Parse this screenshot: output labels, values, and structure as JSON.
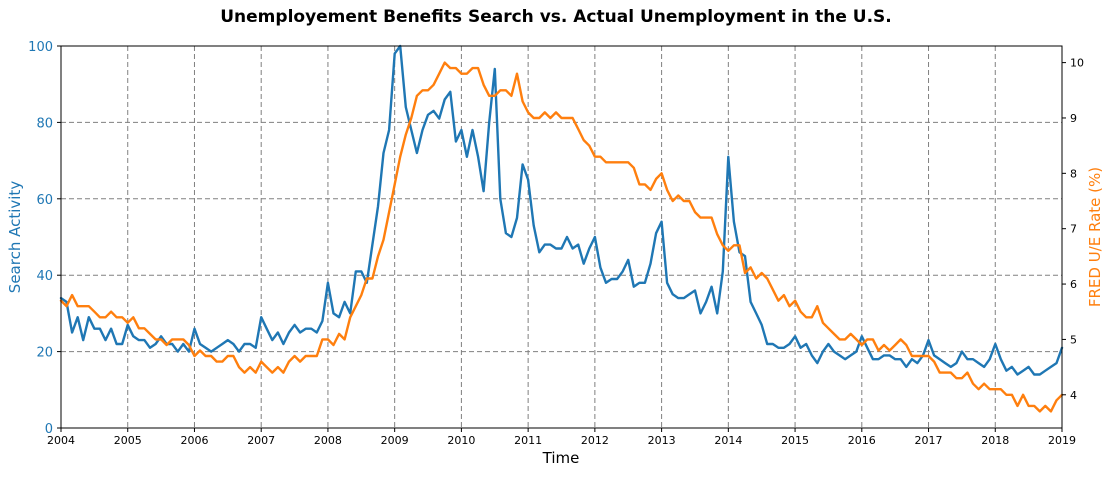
{
  "chart_data": {
    "type": "line",
    "title": "Unemployement Benefits Search vs. Actual Unemployment in the U.S.",
    "xlabel": "Time",
    "ylabel_left": "Search Activity",
    "ylabel_right": "FRED U/E Rate (%)",
    "xlim": [
      2004,
      2019
    ],
    "ylim_left": [
      0,
      100
    ],
    "ylim_right": [
      3.4,
      10.3
    ],
    "x_ticks": [
      "2004",
      "2005",
      "2006",
      "2007",
      "2008",
      "2009",
      "2010",
      "2011",
      "2012",
      "2013",
      "2014",
      "2015",
      "2016",
      "2017",
      "2018",
      "2019"
    ],
    "y_left_ticks": [
      0,
      20,
      40,
      60,
      80,
      100
    ],
    "y_right_ticks": [
      4,
      5,
      6,
      7,
      8,
      9,
      10
    ],
    "grid": true,
    "grid_style": "dashed",
    "colors": {
      "search": "#1f77b4",
      "rate": "#ff7f0e",
      "grid": "#808080",
      "axis": "#000000"
    },
    "series": [
      {
        "axis": "left",
        "color": "#1f77b4",
        "x": [
          2004.0,
          2004.083,
          2004.167,
          2004.25,
          2004.333,
          2004.417,
          2004.5,
          2004.583,
          2004.667,
          2004.75,
          2004.833,
          2004.917,
          2005.0,
          2005.083,
          2005.167,
          2005.25,
          2005.333,
          2005.417,
          2005.5,
          2005.583,
          2005.667,
          2005.75,
          2005.833,
          2005.917,
          2006.0,
          2006.083,
          2006.167,
          2006.25,
          2006.333,
          2006.417,
          2006.5,
          2006.583,
          2006.667,
          2006.75,
          2006.833,
          2006.917,
          2007.0,
          2007.083,
          2007.167,
          2007.25,
          2007.333,
          2007.417,
          2007.5,
          2007.583,
          2007.667,
          2007.75,
          2007.833,
          2007.917,
          2008.0,
          2008.083,
          2008.167,
          2008.25,
          2008.333,
          2008.417,
          2008.5,
          2008.583,
          2008.667,
          2008.75,
          2008.833,
          2008.917,
          2009.0,
          2009.083,
          2009.167,
          2009.25,
          2009.333,
          2009.417,
          2009.5,
          2009.583,
          2009.667,
          2009.75,
          2009.833,
          2009.917,
          2010.0,
          2010.083,
          2010.167,
          2010.25,
          2010.333,
          2010.417,
          2010.5,
          2010.583,
          2010.667,
          2010.75,
          2010.833,
          2010.917,
          2011.0,
          2011.083,
          2011.167,
          2011.25,
          2011.333,
          2011.417,
          2011.5,
          2011.583,
          2011.667,
          2011.75,
          2011.833,
          2011.917,
          2012.0,
          2012.083,
          2012.167,
          2012.25,
          2012.333,
          2012.417,
          2012.5,
          2012.583,
          2012.667,
          2012.75,
          2012.833,
          2012.917,
          2013.0,
          2013.083,
          2013.167,
          2013.25,
          2013.333,
          2013.417,
          2013.5,
          2013.583,
          2013.667,
          2013.75,
          2013.833,
          2013.917,
          2014.0,
          2014.083,
          2014.167,
          2014.25,
          2014.333,
          2014.417,
          2014.5,
          2014.583,
          2014.667,
          2014.75,
          2014.833,
          2014.917,
          2015.0,
          2015.083,
          2015.167,
          2015.25,
          2015.333,
          2015.417,
          2015.5,
          2015.583,
          2015.667,
          2015.75,
          2015.833,
          2015.917,
          2016.0,
          2016.083,
          2016.167,
          2016.25,
          2016.333,
          2016.417,
          2016.5,
          2016.583,
          2016.667,
          2016.75,
          2016.833,
          2016.917,
          2017.0,
          2017.083,
          2017.167,
          2017.25,
          2017.333,
          2017.417,
          2017.5,
          2017.583,
          2017.667,
          2017.75,
          2017.833,
          2017.917,
          2018.0,
          2018.083,
          2018.167,
          2018.25,
          2018.333,
          2018.417,
          2018.5,
          2018.583,
          2018.667,
          2018.75,
          2018.833,
          2018.917,
          2019.0
        ],
        "values": [
          34,
          33,
          25,
          29,
          23,
          29,
          26,
          26,
          23,
          26,
          22,
          22,
          27,
          24,
          23,
          23,
          21,
          22,
          24,
          22,
          22,
          20,
          22,
          20,
          26,
          22,
          21,
          20,
          21,
          22,
          23,
          22,
          20,
          22,
          22,
          21,
          29,
          26,
          23,
          25,
          22,
          25,
          27,
          25,
          26,
          26,
          25,
          28,
          38,
          30,
          29,
          33,
          30,
          41,
          41,
          38,
          48,
          58,
          72,
          78,
          98,
          100,
          84,
          78,
          72,
          78,
          82,
          83,
          81,
          86,
          88,
          75,
          78,
          71,
          78,
          71,
          62,
          80,
          94,
          60,
          51,
          50,
          55,
          69,
          65,
          53,
          46,
          48,
          48,
          47,
          47,
          50,
          47,
          48,
          43,
          47,
          50,
          42,
          38,
          39,
          39,
          41,
          44,
          37,
          38,
          38,
          43,
          51,
          54,
          38,
          35,
          34,
          34,
          35,
          36,
          30,
          33,
          37,
          30,
          41,
          71,
          54,
          46,
          45,
          33,
          30,
          27,
          22,
          22,
          21,
          21,
          22,
          24,
          21,
          22,
          19,
          17,
          20,
          22,
          20,
          19,
          18,
          19,
          20,
          24,
          21,
          18,
          18,
          19,
          19,
          18,
          18,
          16,
          18,
          17,
          19,
          23,
          19,
          18,
          17,
          16,
          17,
          20,
          18,
          18,
          17,
          16,
          18,
          22,
          18,
          15,
          16,
          14,
          15,
          16,
          14,
          14,
          15,
          16,
          17,
          21
        ]
      },
      {
        "axis": "right",
        "color": "#ff7f0e",
        "x": [
          2004.0,
          2004.083,
          2004.167,
          2004.25,
          2004.333,
          2004.417,
          2004.5,
          2004.583,
          2004.667,
          2004.75,
          2004.833,
          2004.917,
          2005.0,
          2005.083,
          2005.167,
          2005.25,
          2005.333,
          2005.417,
          2005.5,
          2005.583,
          2005.667,
          2005.75,
          2005.833,
          2005.917,
          2006.0,
          2006.083,
          2006.167,
          2006.25,
          2006.333,
          2006.417,
          2006.5,
          2006.583,
          2006.667,
          2006.75,
          2006.833,
          2006.917,
          2007.0,
          2007.083,
          2007.167,
          2007.25,
          2007.333,
          2007.417,
          2007.5,
          2007.583,
          2007.667,
          2007.75,
          2007.833,
          2007.917,
          2008.0,
          2008.083,
          2008.167,
          2008.25,
          2008.333,
          2008.417,
          2008.5,
          2008.583,
          2008.667,
          2008.75,
          2008.833,
          2008.917,
          2009.0,
          2009.083,
          2009.167,
          2009.25,
          2009.333,
          2009.417,
          2009.5,
          2009.583,
          2009.667,
          2009.75,
          2009.833,
          2009.917,
          2010.0,
          2010.083,
          2010.167,
          2010.25,
          2010.333,
          2010.417,
          2010.5,
          2010.583,
          2010.667,
          2010.75,
          2010.833,
          2010.917,
          2011.0,
          2011.083,
          2011.167,
          2011.25,
          2011.333,
          2011.417,
          2011.5,
          2011.583,
          2011.667,
          2011.75,
          2011.833,
          2011.917,
          2012.0,
          2012.083,
          2012.167,
          2012.25,
          2012.333,
          2012.417,
          2012.5,
          2012.583,
          2012.667,
          2012.75,
          2012.833,
          2012.917,
          2013.0,
          2013.083,
          2013.167,
          2013.25,
          2013.333,
          2013.417,
          2013.5,
          2013.583,
          2013.667,
          2013.75,
          2013.833,
          2013.917,
          2014.0,
          2014.083,
          2014.167,
          2014.25,
          2014.333,
          2014.417,
          2014.5,
          2014.583,
          2014.667,
          2014.75,
          2014.833,
          2014.917,
          2015.0,
          2015.083,
          2015.167,
          2015.25,
          2015.333,
          2015.417,
          2015.5,
          2015.583,
          2015.667,
          2015.75,
          2015.833,
          2015.917,
          2016.0,
          2016.083,
          2016.167,
          2016.25,
          2016.333,
          2016.417,
          2016.5,
          2016.583,
          2016.667,
          2016.75,
          2016.833,
          2016.917,
          2017.0,
          2017.083,
          2017.167,
          2017.25,
          2017.333,
          2017.417,
          2017.5,
          2017.583,
          2017.667,
          2017.75,
          2017.833,
          2017.917,
          2018.0,
          2018.083,
          2018.167,
          2018.25,
          2018.333,
          2018.417,
          2018.5,
          2018.583,
          2018.667,
          2018.75,
          2018.833,
          2018.917,
          2019.0
        ],
        "values": [
          5.7,
          5.6,
          5.8,
          5.6,
          5.6,
          5.6,
          5.5,
          5.4,
          5.4,
          5.5,
          5.4,
          5.4,
          5.3,
          5.4,
          5.2,
          5.2,
          5.1,
          5.0,
          5.0,
          4.9,
          5.0,
          5.0,
          5.0,
          4.9,
          4.7,
          4.8,
          4.7,
          4.7,
          4.6,
          4.6,
          4.7,
          4.7,
          4.5,
          4.4,
          4.5,
          4.4,
          4.6,
          4.5,
          4.4,
          4.5,
          4.4,
          4.6,
          4.7,
          4.6,
          4.7,
          4.7,
          4.7,
          5.0,
          5.0,
          4.9,
          5.1,
          5.0,
          5.4,
          5.6,
          5.8,
          6.1,
          6.1,
          6.5,
          6.8,
          7.3,
          7.8,
          8.3,
          8.7,
          9.0,
          9.4,
          9.5,
          9.5,
          9.6,
          9.8,
          10.0,
          9.9,
          9.9,
          9.8,
          9.8,
          9.9,
          9.9,
          9.6,
          9.4,
          9.4,
          9.5,
          9.5,
          9.4,
          9.8,
          9.3,
          9.1,
          9.0,
          9.0,
          9.1,
          9.0,
          9.1,
          9.0,
          9.0,
          9.0,
          8.8,
          8.6,
          8.5,
          8.3,
          8.3,
          8.2,
          8.2,
          8.2,
          8.2,
          8.2,
          8.1,
          7.8,
          7.8,
          7.7,
          7.9,
          8.0,
          7.7,
          7.5,
          7.6,
          7.5,
          7.5,
          7.3,
          7.2,
          7.2,
          7.2,
          6.9,
          6.7,
          6.6,
          6.7,
          6.7,
          6.2,
          6.3,
          6.1,
          6.2,
          6.1,
          5.9,
          5.7,
          5.8,
          5.6,
          5.7,
          5.5,
          5.4,
          5.4,
          5.6,
          5.3,
          5.2,
          5.1,
          5.0,
          5.0,
          5.1,
          5.0,
          4.9,
          5.0,
          5.0,
          4.8,
          4.9,
          4.8,
          4.9,
          5.0,
          4.9,
          4.7,
          4.7,
          4.7,
          4.7,
          4.6,
          4.4,
          4.4,
          4.4,
          4.3,
          4.3,
          4.4,
          4.2,
          4.1,
          4.2,
          4.1,
          4.1,
          4.1,
          4.0,
          4.0,
          3.8,
          4.0,
          3.8,
          3.8,
          3.7,
          3.8,
          3.7,
          3.9,
          4.0
        ]
      }
    ]
  }
}
